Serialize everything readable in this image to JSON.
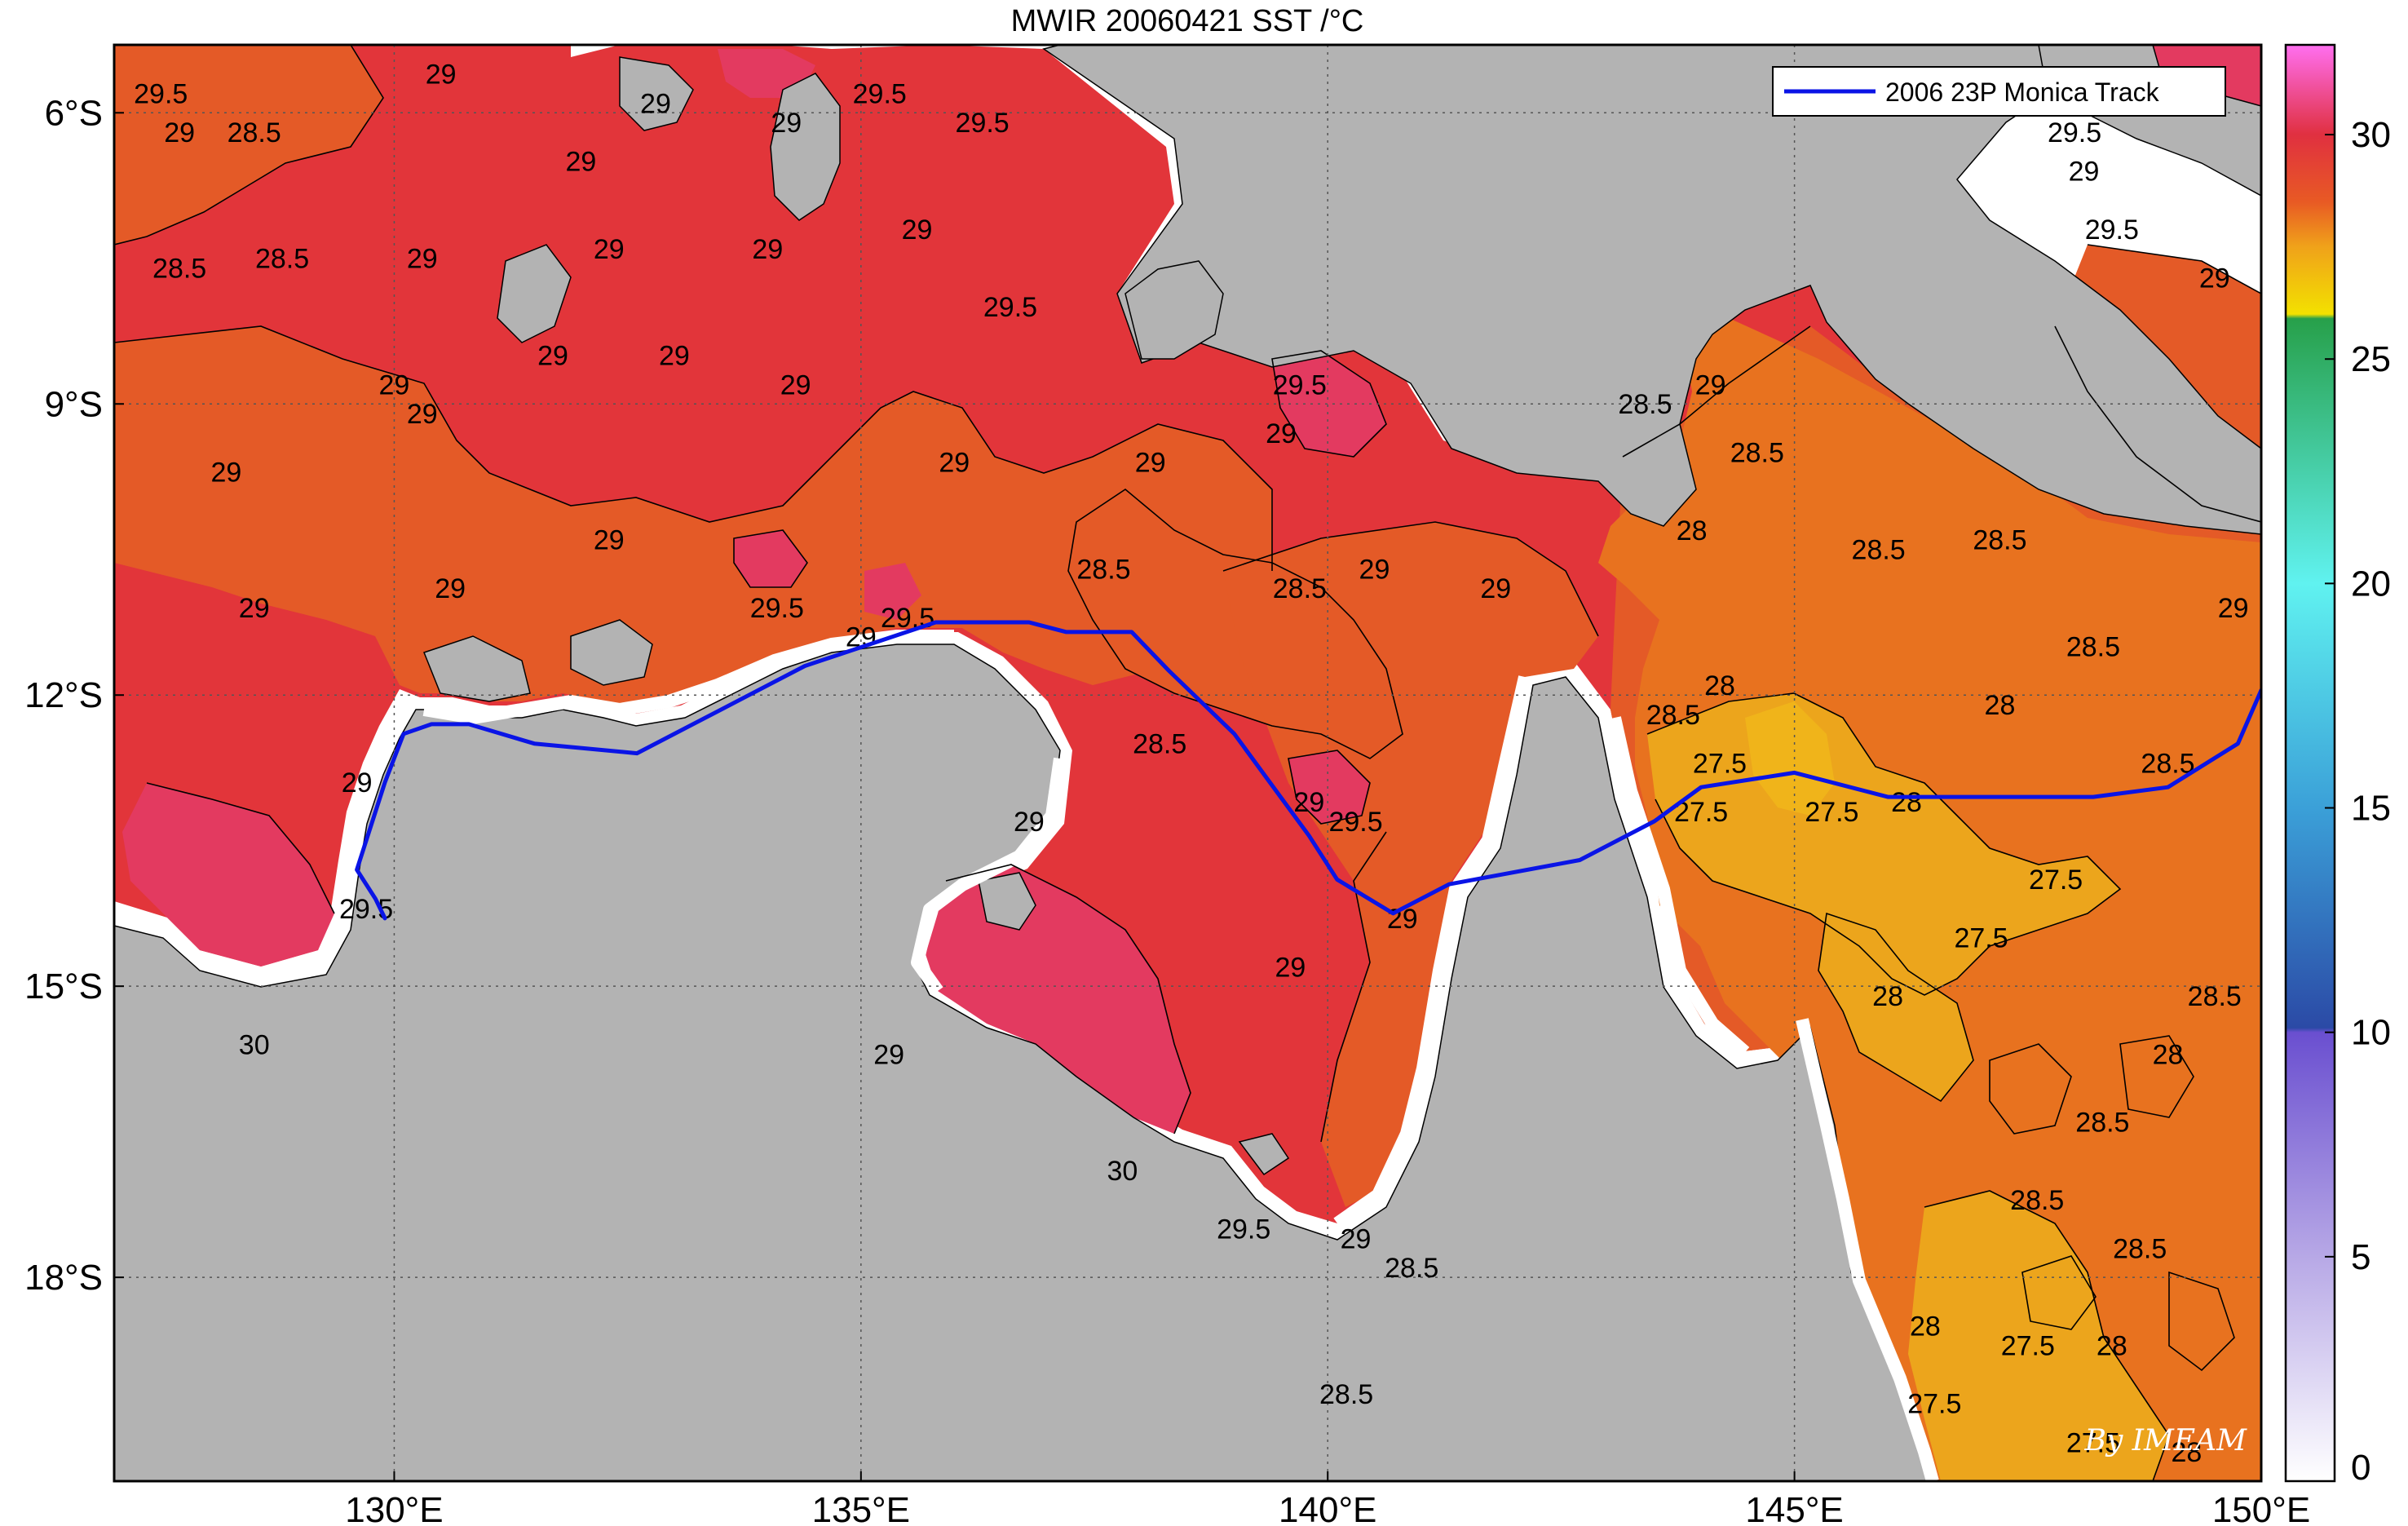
{
  "title": "MWIR 20060421 SST /°C",
  "map": {
    "lon_range": [
      127,
      150
    ],
    "lat_range": [
      -20.1,
      -5.3
    ],
    "x_ticks": [
      {
        "value": 130,
        "label": "130°E"
      },
      {
        "value": 135,
        "label": "135°E"
      },
      {
        "value": 140,
        "label": "140°E"
      },
      {
        "value": 145,
        "label": "145°E"
      },
      {
        "value": 150,
        "label": "150°E"
      }
    ],
    "y_ticks": [
      {
        "value": -6,
        "label": "6°S"
      },
      {
        "value": -9,
        "label": "9°S"
      },
      {
        "value": -12,
        "label": "12°S"
      },
      {
        "value": -15,
        "label": "15°S"
      },
      {
        "value": -18,
        "label": "18°S"
      }
    ],
    "grid": "dotted",
    "land_color": "#b3b3b3",
    "coast_mask_color": "#ffffff"
  },
  "colorbar": {
    "range": [
      0,
      32
    ],
    "ticks": [
      {
        "value": 0,
        "label": "0"
      },
      {
        "value": 5,
        "label": "5"
      },
      {
        "value": 10,
        "label": "10"
      },
      {
        "value": 15,
        "label": "15"
      },
      {
        "value": 20,
        "label": "20"
      },
      {
        "value": 25,
        "label": "25"
      },
      {
        "value": 30,
        "label": "30"
      }
    ],
    "stops": [
      {
        "value": 0,
        "color": "#ffffff"
      },
      {
        "value": 5,
        "color": "#b7a8e6"
      },
      {
        "value": 10,
        "color": "#6a4fd0"
      },
      {
        "value": 10.1,
        "color": "#2b4aa6"
      },
      {
        "value": 15,
        "color": "#3ba0d8"
      },
      {
        "value": 20,
        "color": "#60f2f0"
      },
      {
        "value": 25.9,
        "color": "#27a04a"
      },
      {
        "value": 26,
        "color": "#f3e100"
      },
      {
        "value": 27.5,
        "color": "#f0a21a"
      },
      {
        "value": 28.5,
        "color": "#e85a24"
      },
      {
        "value": 30,
        "color": "#e03040"
      },
      {
        "value": 32,
        "color": "#ff6ff0"
      }
    ]
  },
  "legend": {
    "entries": [
      {
        "label": "2006 23P Monica Track",
        "color": "#0a14e6"
      }
    ],
    "placement": "top-right"
  },
  "track": {
    "name": "2006 23P Monica Track",
    "color": "#0a14e6",
    "points": [
      [
        150.0,
        -11.95
      ],
      [
        149.75,
        -12.5
      ],
      [
        149.0,
        -12.95
      ],
      [
        148.2,
        -13.05
      ],
      [
        146.0,
        -13.05
      ],
      [
        145.0,
        -12.8
      ],
      [
        144.0,
        -12.95
      ],
      [
        143.5,
        -13.3
      ],
      [
        142.7,
        -13.7
      ],
      [
        141.3,
        -13.95
      ],
      [
        140.7,
        -14.25
      ],
      [
        140.1,
        -13.9
      ],
      [
        139.8,
        -13.45
      ],
      [
        139.0,
        -12.4
      ],
      [
        138.3,
        -11.75
      ],
      [
        137.9,
        -11.35
      ],
      [
        137.2,
        -11.35
      ],
      [
        136.8,
        -11.25
      ],
      [
        135.8,
        -11.25
      ],
      [
        134.4,
        -11.7
      ],
      [
        133.8,
        -12.0
      ],
      [
        132.6,
        -12.6
      ],
      [
        131.5,
        -12.5
      ],
      [
        130.8,
        -12.3
      ],
      [
        130.4,
        -12.3
      ],
      [
        130.1,
        -12.4
      ],
      [
        129.9,
        -12.9
      ],
      [
        129.6,
        -13.8
      ],
      [
        129.8,
        -14.1
      ],
      [
        129.9,
        -14.3
      ]
    ]
  },
  "contour_labels": [
    {
      "lon": 127.5,
      "lat": -5.9,
      "text": "29.5"
    },
    {
      "lon": 127.7,
      "lat": -6.3,
      "text": "29"
    },
    {
      "lon": 128.5,
      "lat": -6.3,
      "text": "28.5"
    },
    {
      "lon": 130.5,
      "lat": -5.7,
      "text": "29"
    },
    {
      "lon": 132.0,
      "lat": -6.6,
      "text": "29"
    },
    {
      "lon": 132.8,
      "lat": -6.0,
      "text": "29"
    },
    {
      "lon": 134.2,
      "lat": -6.2,
      "text": "29"
    },
    {
      "lon": 135.2,
      "lat": -5.9,
      "text": "29.5"
    },
    {
      "lon": 136.3,
      "lat": -6.2,
      "text": "29.5"
    },
    {
      "lon": 132.3,
      "lat": -7.5,
      "text": "29"
    },
    {
      "lon": 134.0,
      "lat": -7.5,
      "text": "29"
    },
    {
      "lon": 135.6,
      "lat": -7.3,
      "text": "29"
    },
    {
      "lon": 127.7,
      "lat": -7.7,
      "text": "28.5"
    },
    {
      "lon": 128.8,
      "lat": -7.6,
      "text": "28.5"
    },
    {
      "lon": 130.3,
      "lat": -7.6,
      "text": "29"
    },
    {
      "lon": 136.6,
      "lat": -8.1,
      "text": "29.5"
    },
    {
      "lon": 130.0,
      "lat": -8.9,
      "text": "29"
    },
    {
      "lon": 131.7,
      "lat": -8.6,
      "text": "29"
    },
    {
      "lon": 133.0,
      "lat": -8.6,
      "text": "29"
    },
    {
      "lon": 134.3,
      "lat": -8.9,
      "text": "29"
    },
    {
      "lon": 139.7,
      "lat": -8.9,
      "text": "29.5"
    },
    {
      "lon": 139.5,
      "lat": -9.4,
      "text": "29"
    },
    {
      "lon": 138.1,
      "lat": -9.7,
      "text": "29"
    },
    {
      "lon": 130.3,
      "lat": -9.2,
      "text": "29"
    },
    {
      "lon": 128.2,
      "lat": -9.8,
      "text": "29"
    },
    {
      "lon": 136.0,
      "lat": -9.7,
      "text": "29"
    },
    {
      "lon": 143.4,
      "lat": -9.1,
      "text": "28.5"
    },
    {
      "lon": 144.1,
      "lat": -8.9,
      "text": "29"
    },
    {
      "lon": 144.6,
      "lat": -9.6,
      "text": "28.5"
    },
    {
      "lon": 143.9,
      "lat": -10.4,
      "text": "28"
    },
    {
      "lon": 145.9,
      "lat": -10.6,
      "text": "28.5"
    },
    {
      "lon": 147.2,
      "lat": -10.5,
      "text": "28.5"
    },
    {
      "lon": 148.4,
      "lat": -7.3,
      "text": "29.5"
    },
    {
      "lon": 149.5,
      "lat": -7.8,
      "text": "29"
    },
    {
      "lon": 148.0,
      "lat": -6.3,
      "text": "29.5"
    },
    {
      "lon": 148.1,
      "lat": -6.7,
      "text": "29"
    },
    {
      "lon": 132.3,
      "lat": -10.5,
      "text": "29"
    },
    {
      "lon": 130.6,
      "lat": -11.0,
      "text": "29"
    },
    {
      "lon": 128.5,
      "lat": -11.2,
      "text": "29"
    },
    {
      "lon": 134.1,
      "lat": -11.2,
      "text": "29.5"
    },
    {
      "lon": 135.0,
      "lat": -11.5,
      "text": "29"
    },
    {
      "lon": 135.5,
      "lat": -11.3,
      "text": "29.5"
    },
    {
      "lon": 137.6,
      "lat": -10.8,
      "text": "28.5"
    },
    {
      "lon": 139.7,
      "lat": -11.0,
      "text": "28.5"
    },
    {
      "lon": 140.5,
      "lat": -10.8,
      "text": "29"
    },
    {
      "lon": 141.8,
      "lat": -11.0,
      "text": "29"
    },
    {
      "lon": 149.7,
      "lat": -11.2,
      "text": "29"
    },
    {
      "lon": 148.2,
      "lat": -11.6,
      "text": "28.5"
    },
    {
      "lon": 147.2,
      "lat": -12.2,
      "text": "28"
    },
    {
      "lon": 143.7,
      "lat": -12.3,
      "text": "28.5"
    },
    {
      "lon": 144.2,
      "lat": -12.8,
      "text": "27.5"
    },
    {
      "lon": 144.0,
      "lat": -13.3,
      "text": "27.5"
    },
    {
      "lon": 145.4,
      "lat": -13.3,
      "text": "27.5"
    },
    {
      "lon": 146.2,
      "lat": -13.2,
      "text": "28"
    },
    {
      "lon": 149.0,
      "lat": -12.8,
      "text": "28.5"
    },
    {
      "lon": 147.8,
      "lat": -14.0,
      "text": "27.5"
    },
    {
      "lon": 147.0,
      "lat": -14.6,
      "text": "27.5"
    },
    {
      "lon": 146.0,
      "lat": -15.2,
      "text": "28"
    },
    {
      "lon": 149.5,
      "lat": -15.2,
      "text": "28.5"
    },
    {
      "lon": 149.0,
      "lat": -15.8,
      "text": "28"
    },
    {
      "lon": 144.2,
      "lat": -12.0,
      "text": "28"
    },
    {
      "lon": 138.2,
      "lat": -12.6,
      "text": "28.5"
    },
    {
      "lon": 136.8,
      "lat": -13.4,
      "text": "29"
    },
    {
      "lon": 139.8,
      "lat": -13.2,
      "text": "29"
    },
    {
      "lon": 140.3,
      "lat": -13.4,
      "text": "29.5"
    },
    {
      "lon": 140.8,
      "lat": -14.4,
      "text": "29"
    },
    {
      "lon": 139.6,
      "lat": -14.9,
      "text": "29"
    },
    {
      "lon": 129.7,
      "lat": -14.3,
      "text": "29.5"
    },
    {
      "lon": 129.6,
      "lat": -13.0,
      "text": "29"
    },
    {
      "lon": 128.5,
      "lat": -15.7,
      "text": "30"
    },
    {
      "lon": 135.3,
      "lat": -15.8,
      "text": "29"
    },
    {
      "lon": 137.8,
      "lat": -17.0,
      "text": "30"
    },
    {
      "lon": 139.1,
      "lat": -17.6,
      "text": "29.5"
    },
    {
      "lon": 140.3,
      "lat": -17.7,
      "text": "29"
    },
    {
      "lon": 140.9,
      "lat": -18.0,
      "text": "28.5"
    },
    {
      "lon": 140.2,
      "lat": -19.3,
      "text": "28.5"
    },
    {
      "lon": 147.6,
      "lat": -17.3,
      "text": "28.5"
    },
    {
      "lon": 148.3,
      "lat": -16.5,
      "text": "28.5"
    },
    {
      "lon": 148.7,
      "lat": -17.8,
      "text": "28.5"
    },
    {
      "lon": 146.4,
      "lat": -18.6,
      "text": "28"
    },
    {
      "lon": 147.5,
      "lat": -18.8,
      "text": "27.5"
    },
    {
      "lon": 148.4,
      "lat": -18.8,
      "text": "28"
    },
    {
      "lon": 146.5,
      "lat": -19.4,
      "text": "27.5"
    },
    {
      "lon": 148.2,
      "lat": -19.8,
      "text": "27.5"
    },
    {
      "lon": 149.2,
      "lat": -19.9,
      "text": "28"
    }
  ],
  "credit": "By IMEAM"
}
